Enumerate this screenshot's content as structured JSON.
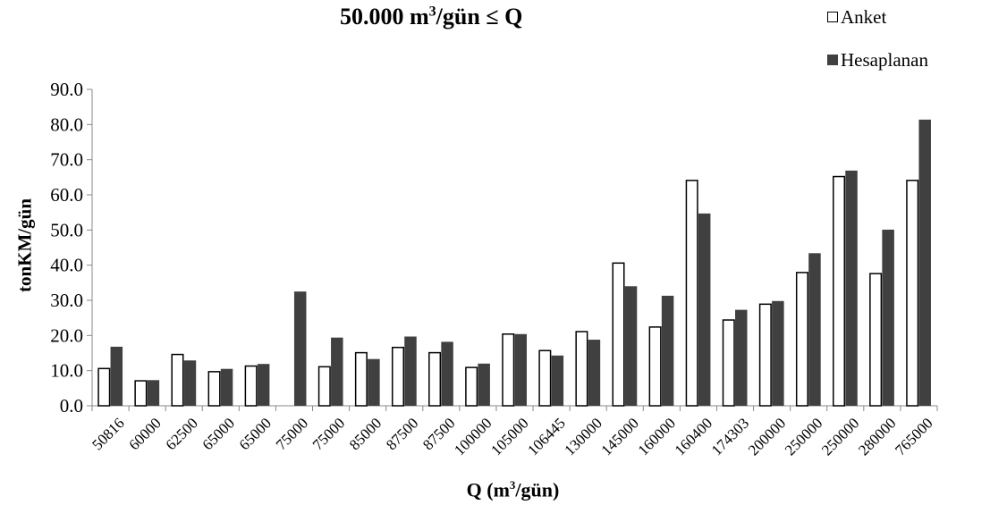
{
  "title_parts": {
    "main": "50.000 m",
    "sup": "3",
    "rest": "/gün ≤  Q"
  },
  "xlabel_parts": {
    "main": "Q (m",
    "sup": "3",
    "rest": "/gün)"
  },
  "legend": {
    "anket": "Anket",
    "hesaplanan": "Hesaplanan"
  },
  "colors": {
    "anket_fill": "#ffffff",
    "anket_stroke": "#000000",
    "hesaplanan_fill": "#404040"
  },
  "chart_data": {
    "type": "bar",
    "title": "50.000 m³/gün ≤  Q",
    "xlabel": "Q (m³/gün)",
    "ylabel": "tonKM/gün",
    "ylim": [
      0,
      90
    ],
    "yticks": [
      "0.0",
      "10.0",
      "20.0",
      "30.0",
      "40.0",
      "50.0",
      "60.0",
      "70.0",
      "80.0",
      "90.0"
    ],
    "grid": false,
    "legend_position": "top-right",
    "categories": [
      "50816",
      "60000",
      "62500",
      "65000",
      "65000",
      "75000",
      "75000",
      "85000",
      "87500",
      "87500",
      "100000",
      "105000",
      "106445",
      "130000",
      "145000",
      "160000",
      "160400",
      "174303",
      "200000",
      "250000",
      "250000",
      "280000",
      "765000"
    ],
    "series": [
      {
        "name": "Anket",
        "values": [
          10.6,
          7.1,
          14.6,
          9.7,
          11.3,
          null,
          11.1,
          15.1,
          16.6,
          15.1,
          10.9,
          20.4,
          15.7,
          21.1,
          40.6,
          22.4,
          64.1,
          24.4,
          28.9,
          37.9,
          65.2,
          37.6,
          64.1
        ]
      },
      {
        "name": "Hesaplanan",
        "values": [
          16.8,
          7.3,
          12.9,
          10.5,
          11.9,
          32.5,
          19.4,
          13.3,
          19.7,
          18.2,
          12.0,
          20.4,
          14.3,
          18.8,
          34.0,
          31.3,
          54.7,
          27.3,
          29.8,
          43.4,
          66.9,
          50.1,
          81.4
        ]
      }
    ]
  }
}
